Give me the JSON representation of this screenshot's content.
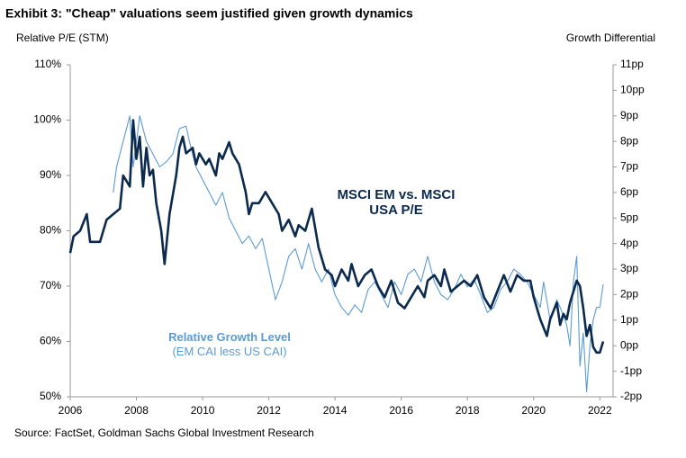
{
  "chart_data": {
    "type": "line",
    "title": "Exhibit 3: \"Cheap\" valuations seem justified given growth dynamics",
    "y_label": "Relative  P/E (STM)",
    "y2_label": "Growth  Differential",
    "source": "Source: FactSet, Goldman Sachs Global Investment Research",
    "xlim": [
      2006,
      2022.4
    ],
    "xticks": [
      2006,
      2008,
      2010,
      2012,
      2014,
      2016,
      2018,
      2020,
      2022
    ],
    "ylim": [
      50,
      110
    ],
    "yticks": [
      {
        "value": 50,
        "label": "50%"
      },
      {
        "value": 60,
        "label": "60%"
      },
      {
        "value": 70,
        "label": "70%"
      },
      {
        "value": 80,
        "label": "80%"
      },
      {
        "value": 90,
        "label": "90%"
      },
      {
        "value": 100,
        "label": "100%"
      },
      {
        "value": 110,
        "label": "110%"
      }
    ],
    "y2lim": [
      -2,
      11
    ],
    "y2ticks": [
      {
        "value": -2,
        "label": "-2pp"
      },
      {
        "value": -1,
        "label": "-1pp"
      },
      {
        "value": 0,
        "label": "0pp"
      },
      {
        "value": 1,
        "label": "1pp"
      },
      {
        "value": 2,
        "label": "2pp"
      },
      {
        "value": 3,
        "label": "3pp"
      },
      {
        "value": 4,
        "label": "4pp"
      },
      {
        "value": 5,
        "label": "5pp"
      },
      {
        "value": 6,
        "label": "6pp"
      },
      {
        "value": 7,
        "label": "7pp"
      },
      {
        "value": 8,
        "label": "8pp"
      },
      {
        "value": 9,
        "label": "9pp"
      },
      {
        "value": 10,
        "label": "10pp"
      },
      {
        "value": 11,
        "label": "11pp"
      }
    ],
    "grid": false,
    "series": [
      {
        "name": "MSCI EM vs. MSCI USA P/E",
        "color": "#0b2a4e",
        "axis": "y",
        "x": [
          2006.0,
          2006.1,
          2006.3,
          2006.5,
          2006.6,
          2006.9,
          2007.1,
          2007.3,
          2007.5,
          2007.6,
          2007.8,
          2007.9,
          2008.0,
          2008.1,
          2008.2,
          2008.3,
          2008.4,
          2008.5,
          2008.6,
          2008.75,
          2008.85,
          2009.0,
          2009.2,
          2009.3,
          2009.4,
          2009.5,
          2009.7,
          2009.8,
          2009.9,
          2010.1,
          2010.2,
          2010.4,
          2010.5,
          2010.6,
          2010.8,
          2010.9,
          2011.1,
          2011.3,
          2011.4,
          2011.5,
          2011.7,
          2011.9,
          2012.1,
          2012.3,
          2012.4,
          2012.6,
          2012.8,
          2012.9,
          2013.1,
          2013.2,
          2013.3,
          2013.5,
          2013.7,
          2013.9,
          2014.0,
          2014.2,
          2014.4,
          2014.5,
          2014.7,
          2014.9,
          2015.1,
          2015.3,
          2015.5,
          2015.7,
          2015.9,
          2016.1,
          2016.3,
          2016.5,
          2016.7,
          2016.8,
          2017.0,
          2017.2,
          2017.3,
          2017.5,
          2017.7,
          2017.9,
          2018.1,
          2018.3,
          2018.5,
          2018.7,
          2018.9,
          2019.1,
          2019.3,
          2019.5,
          2019.7,
          2019.9,
          2020.0,
          2020.2,
          2020.4,
          2020.5,
          2020.7,
          2020.8,
          2020.9,
          2021.0,
          2021.1,
          2021.3,
          2021.4,
          2021.5,
          2021.6,
          2021.7,
          2021.8,
          2021.9,
          2022.0,
          2022.1
        ],
        "values": [
          76,
          79,
          80,
          83,
          78,
          78,
          82,
          83,
          84,
          90,
          88,
          100,
          93,
          97,
          88,
          95,
          90,
          91,
          85,
          80,
          74,
          83,
          90,
          95,
          97,
          94,
          95,
          92,
          94,
          92,
          93,
          90,
          94,
          93,
          96,
          94,
          92,
          87,
          83,
          85,
          85,
          87,
          85,
          83,
          80,
          82,
          79,
          81,
          80,
          82,
          84,
          77,
          73,
          72,
          70,
          73,
          71,
          74,
          70,
          72,
          73,
          70,
          68,
          71,
          67,
          66,
          68,
          70,
          68,
          71,
          72,
          70,
          73,
          69,
          70,
          71,
          70,
          72,
          68,
          66,
          69,
          72,
          69,
          72,
          71,
          71,
          68,
          64,
          61,
          64,
          67,
          63,
          65,
          64,
          67,
          71,
          70,
          66,
          61,
          63,
          59,
          58,
          58,
          60
        ]
      },
      {
        "name": "Relative Growth Level",
        "note": "(EM CAI less US CAI)",
        "color": "#5b9bd5",
        "axis": "y2",
        "x": [
          2007.3,
          2007.4,
          2007.6,
          2007.8,
          2007.9,
          2008.1,
          2008.3,
          2008.5,
          2008.7,
          2008.9,
          2009.1,
          2009.3,
          2009.5,
          2009.6,
          2009.8,
          2010.0,
          2010.2,
          2010.4,
          2010.6,
          2010.8,
          2011.0,
          2011.2,
          2011.4,
          2011.6,
          2011.8,
          2012.0,
          2012.2,
          2012.4,
          2012.6,
          2012.8,
          2013.0,
          2013.2,
          2013.4,
          2013.6,
          2013.8,
          2014.0,
          2014.2,
          2014.4,
          2014.6,
          2014.8,
          2015.0,
          2015.2,
          2015.4,
          2015.6,
          2015.8,
          2016.0,
          2016.2,
          2016.4,
          2016.6,
          2016.8,
          2017.0,
          2017.2,
          2017.4,
          2017.6,
          2017.8,
          2018.0,
          2018.2,
          2018.4,
          2018.6,
          2018.8,
          2019.0,
          2019.2,
          2019.4,
          2019.6,
          2019.8,
          2020.0,
          2020.2,
          2020.3,
          2020.5,
          2020.7,
          2020.9,
          2021.0,
          2021.1,
          2021.2,
          2021.3,
          2021.4,
          2021.5,
          2021.6,
          2021.7,
          2021.8,
          2021.9,
          2022.0,
          2022.1
        ],
        "values": [
          6,
          7,
          8,
          9,
          7,
          9,
          8,
          7.5,
          7,
          7.2,
          7.5,
          8.5,
          8.6,
          8,
          7,
          6.5,
          6,
          5.5,
          6,
          5,
          4.5,
          4,
          4.3,
          3.8,
          4.2,
          3,
          1.8,
          2.5,
          3.5,
          3.8,
          3,
          4,
          3,
          2.5,
          3,
          2,
          1.5,
          1.2,
          1.6,
          1.3,
          2.2,
          2.5,
          2,
          1.5,
          2.5,
          2,
          2.8,
          3,
          2.5,
          3.5,
          2.5,
          2,
          1.8,
          2.2,
          2.8,
          2.3,
          2.6,
          2,
          1.3,
          1.5,
          2.2,
          2.5,
          3,
          2.8,
          2.5,
          2,
          1.5,
          2.5,
          1,
          1.8,
          1.2,
          0.8,
          0,
          2.5,
          3.5,
          -0.8,
          0.5,
          -1.8,
          0,
          1,
          1.5,
          1.5,
          2.4
        ]
      }
    ]
  }
}
